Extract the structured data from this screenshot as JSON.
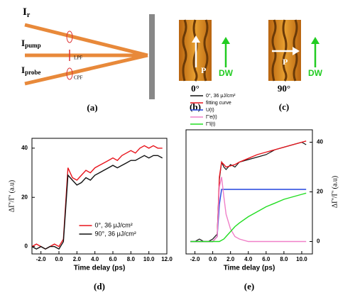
{
  "figure": {
    "a": {
      "beams": [
        {
          "main": "I",
          "sub": "r"
        },
        {
          "main": "I",
          "sub": "pump"
        },
        {
          "main": "I",
          "sub": "probe"
        }
      ],
      "filters": [
        "LPF",
        "CPF"
      ],
      "label": "(a)"
    },
    "b": {
      "arrow": "P",
      "wall": "DW",
      "angle": "0°",
      "label": "(b)"
    },
    "c": {
      "arrow": "P",
      "wall": "DW",
      "angle": "90°",
      "label": "(c)"
    }
  },
  "chart_data": [
    {
      "type": "line",
      "label": "(d)",
      "xlabel": "Time delay (ps)",
      "ylabel": "ΔΓ'/Γ' (a.u)",
      "yaxis_side": "left",
      "legend": "lower right",
      "xlim": [
        -3,
        12
      ],
      "ylim": [
        -3,
        44
      ],
      "xticks": [
        {
          "value": -2,
          "label": "-2.0"
        },
        {
          "value": 0,
          "label": "0.0"
        },
        {
          "value": 2,
          "label": "2.0"
        },
        {
          "value": 4,
          "label": "4.0"
        },
        {
          "value": 6,
          "label": "6.0"
        },
        {
          "value": 8,
          "label": "8.0"
        },
        {
          "value": 10,
          "label": "10.0"
        },
        {
          "value": 12,
          "label": "12.0"
        }
      ],
      "yticks": [
        0,
        20,
        40
      ],
      "x": [
        -3,
        -2.5,
        -2,
        -1.5,
        -1,
        -0.5,
        0,
        0.5,
        1,
        1.5,
        2,
        2.5,
        3,
        3.5,
        4,
        4.5,
        5,
        5.5,
        6,
        6.5,
        7,
        7.5,
        8,
        8.5,
        9,
        9.5,
        10,
        10.5,
        11,
        11.5
      ],
      "series": [
        {
          "name": "0°,  36 μJ/cm²",
          "color": "#e8141c",
          "values": [
            0,
            1,
            0,
            -1,
            0,
            1,
            0,
            3,
            32,
            28,
            27,
            29,
            31,
            30,
            32,
            33,
            34,
            35,
            36,
            35,
            37,
            38,
            39,
            38,
            40,
            41,
            40,
            41,
            40,
            40
          ]
        },
        {
          "name": "90°,  36 μJ/cm²",
          "color": "#111111",
          "values": [
            0,
            -1,
            0,
            -1,
            0,
            0,
            -1,
            2,
            29,
            27,
            25,
            26,
            28,
            27,
            29,
            30,
            31,
            32,
            33,
            32,
            33,
            34,
            35,
            35,
            36,
            37,
            36,
            37,
            37,
            36
          ]
        }
      ]
    },
    {
      "type": "line",
      "label": "(e)",
      "xlabel": "Time delay (ps)",
      "ylabel": "ΔΓ'/Γ' (a.u)",
      "yaxis_side": "right",
      "legend": "upper left",
      "xlim": [
        -3,
        11.2
      ],
      "ylim": [
        -5,
        45
      ],
      "xticks": [
        {
          "value": -2,
          "label": "-2.0"
        },
        {
          "value": 0,
          "label": "0.0"
        },
        {
          "value": 2,
          "label": "2.0"
        },
        {
          "value": 4,
          "label": "4.0"
        },
        {
          "value": 6,
          "label": "6.0"
        },
        {
          "value": 8,
          "label": "8.0"
        },
        {
          "value": 10,
          "label": "10.0"
        }
      ],
      "yticks": [
        0,
        20,
        40
      ],
      "x": [
        -2.5,
        -2,
        -1.5,
        -1,
        -0.5,
        0,
        0.5,
        0.75,
        1,
        1.25,
        1.5,
        2,
        2.5,
        3,
        4,
        5,
        6,
        7,
        8,
        9,
        10,
        10.5
      ],
      "series": [
        {
          "name": "0°, 36 μJ/cm²",
          "color": "#111111",
          "values": [
            0,
            0,
            1,
            0,
            0,
            1,
            3,
            25,
            32,
            30,
            29,
            31,
            30,
            32,
            33,
            34,
            35,
            37,
            38,
            39,
            40,
            39
          ]
        },
        {
          "name": "fitting curve",
          "color": "#e8141c",
          "values": [
            0,
            0,
            0,
            0,
            0,
            0,
            2,
            26,
            32,
            31,
            30,
            30.5,
            31,
            32,
            33.5,
            35,
            36,
            37,
            38,
            39,
            40,
            40.5
          ]
        },
        {
          "name": "U(t)",
          "color": "#2244dd",
          "values": [
            0,
            0,
            0,
            0,
            0,
            0,
            2,
            15,
            21,
            21,
            21,
            21,
            21,
            21,
            21,
            21,
            21,
            21,
            21,
            21,
            21,
            21
          ]
        },
        {
          "name": "Γ'e(t)",
          "color": "#f080c8",
          "values": [
            0,
            0,
            0,
            0,
            0,
            0,
            2,
            22,
            26,
            18,
            11,
            5,
            2,
            1,
            0,
            0,
            0,
            0,
            0,
            0,
            0,
            0
          ]
        },
        {
          "name": "Γ'l(t)",
          "color": "#22dd22",
          "values": [
            0,
            0,
            0,
            0,
            0,
            0,
            0,
            0,
            0.5,
            1,
            2,
            4,
            6,
            7.5,
            10,
            12,
            14,
            15.5,
            17,
            18,
            19,
            19.5
          ]
        }
      ]
    }
  ]
}
